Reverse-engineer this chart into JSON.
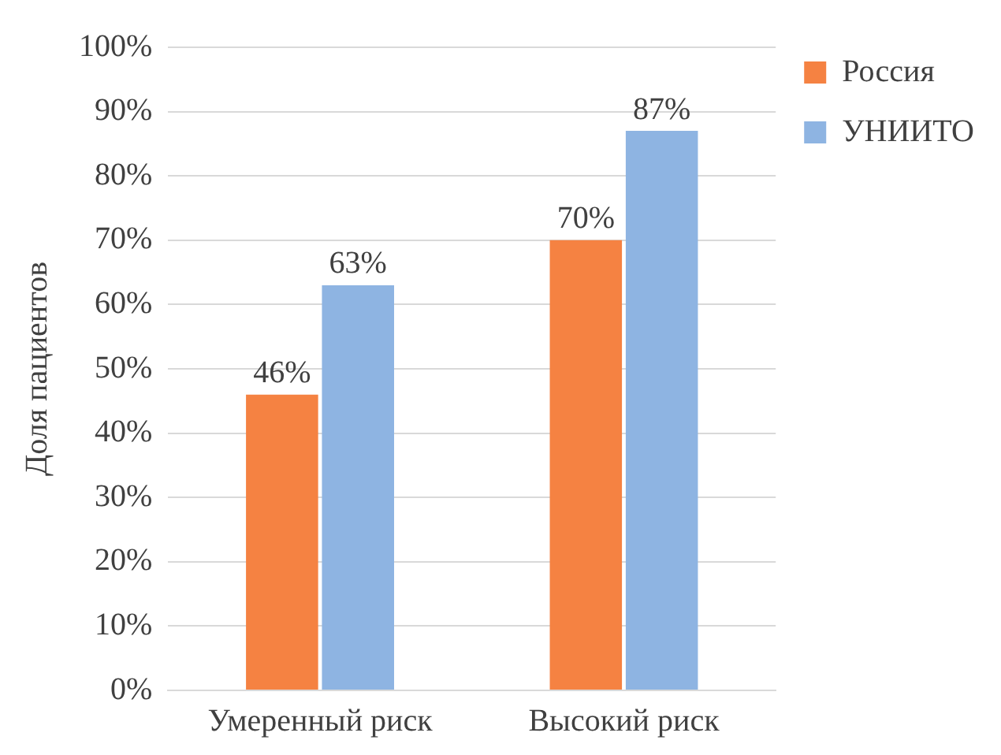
{
  "chart_data": {
    "type": "bar",
    "ylabel": "Доля пациентов",
    "categories": [
      "Умеренный риск",
      "Высокий риск"
    ],
    "series": [
      {
        "name": "Россия",
        "color": "#f58242",
        "values": [
          46,
          70
        ],
        "value_labels": [
          "46%",
          "70%"
        ]
      },
      {
        "name": "УНИИТО",
        "color": "#8eb4e2",
        "values": [
          63,
          87
        ],
        "value_labels": [
          "63%",
          "87%"
        ]
      }
    ],
    "ylim": [
      0,
      100
    ],
    "yticks": [
      {
        "value": 0,
        "label": "0%"
      },
      {
        "value": 10,
        "label": "10%"
      },
      {
        "value": 20,
        "label": "20%"
      },
      {
        "value": 30,
        "label": "30%"
      },
      {
        "value": 40,
        "label": "40%"
      },
      {
        "value": 50,
        "label": "50%"
      },
      {
        "value": 60,
        "label": "60%"
      },
      {
        "value": 70,
        "label": "70%"
      },
      {
        "value": 80,
        "label": "80%"
      },
      {
        "value": 90,
        "label": "90%"
      },
      {
        "value": 100,
        "label": "100%"
      }
    ],
    "grid": "y",
    "legend": "top right"
  }
}
